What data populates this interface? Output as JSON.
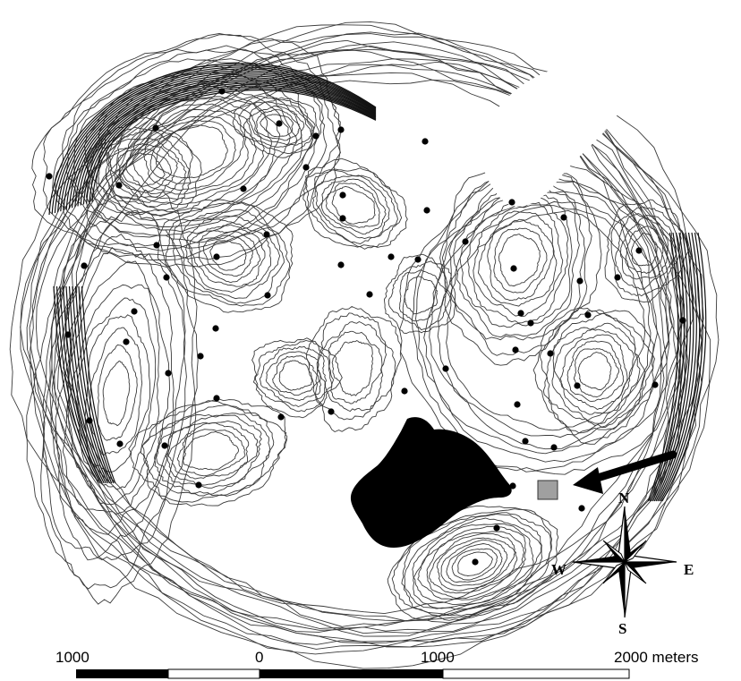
{
  "compass": {
    "north": "N",
    "south": "S",
    "east": "E",
    "west": "W"
  },
  "scale_bar": {
    "labels": [
      "1000",
      "0",
      "1000",
      "2000 meters"
    ]
  },
  "colors": {
    "contour": "#3a3a3a",
    "point": "#000000",
    "water": "#000000",
    "marker": "#a0a0a0",
    "background": "#ffffff"
  },
  "icons": [
    "compass-rose-icon",
    "arrow-icon",
    "site-marker-icon"
  ]
}
